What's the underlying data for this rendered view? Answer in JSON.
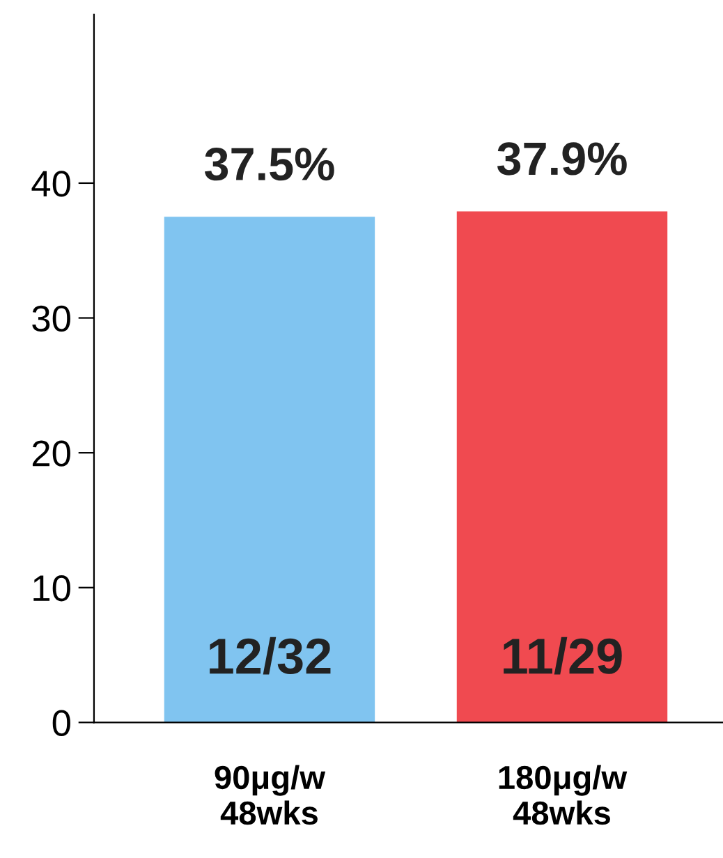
{
  "chart_data": {
    "type": "bar",
    "categories": [
      "90μg/w\n48wks",
      "180μg/w\n48wks"
    ],
    "values": [
      37.5,
      37.9
    ],
    "colors": [
      "#80c4f0",
      "#f04a50"
    ],
    "value_labels": [
      "37.5%",
      "37.9%"
    ],
    "annotations": [
      "12/32",
      "11/29"
    ],
    "ylim": [
      0,
      52.5
    ],
    "yticks": [
      0,
      10,
      20,
      30,
      40
    ],
    "grid": false,
    "legend": false
  }
}
